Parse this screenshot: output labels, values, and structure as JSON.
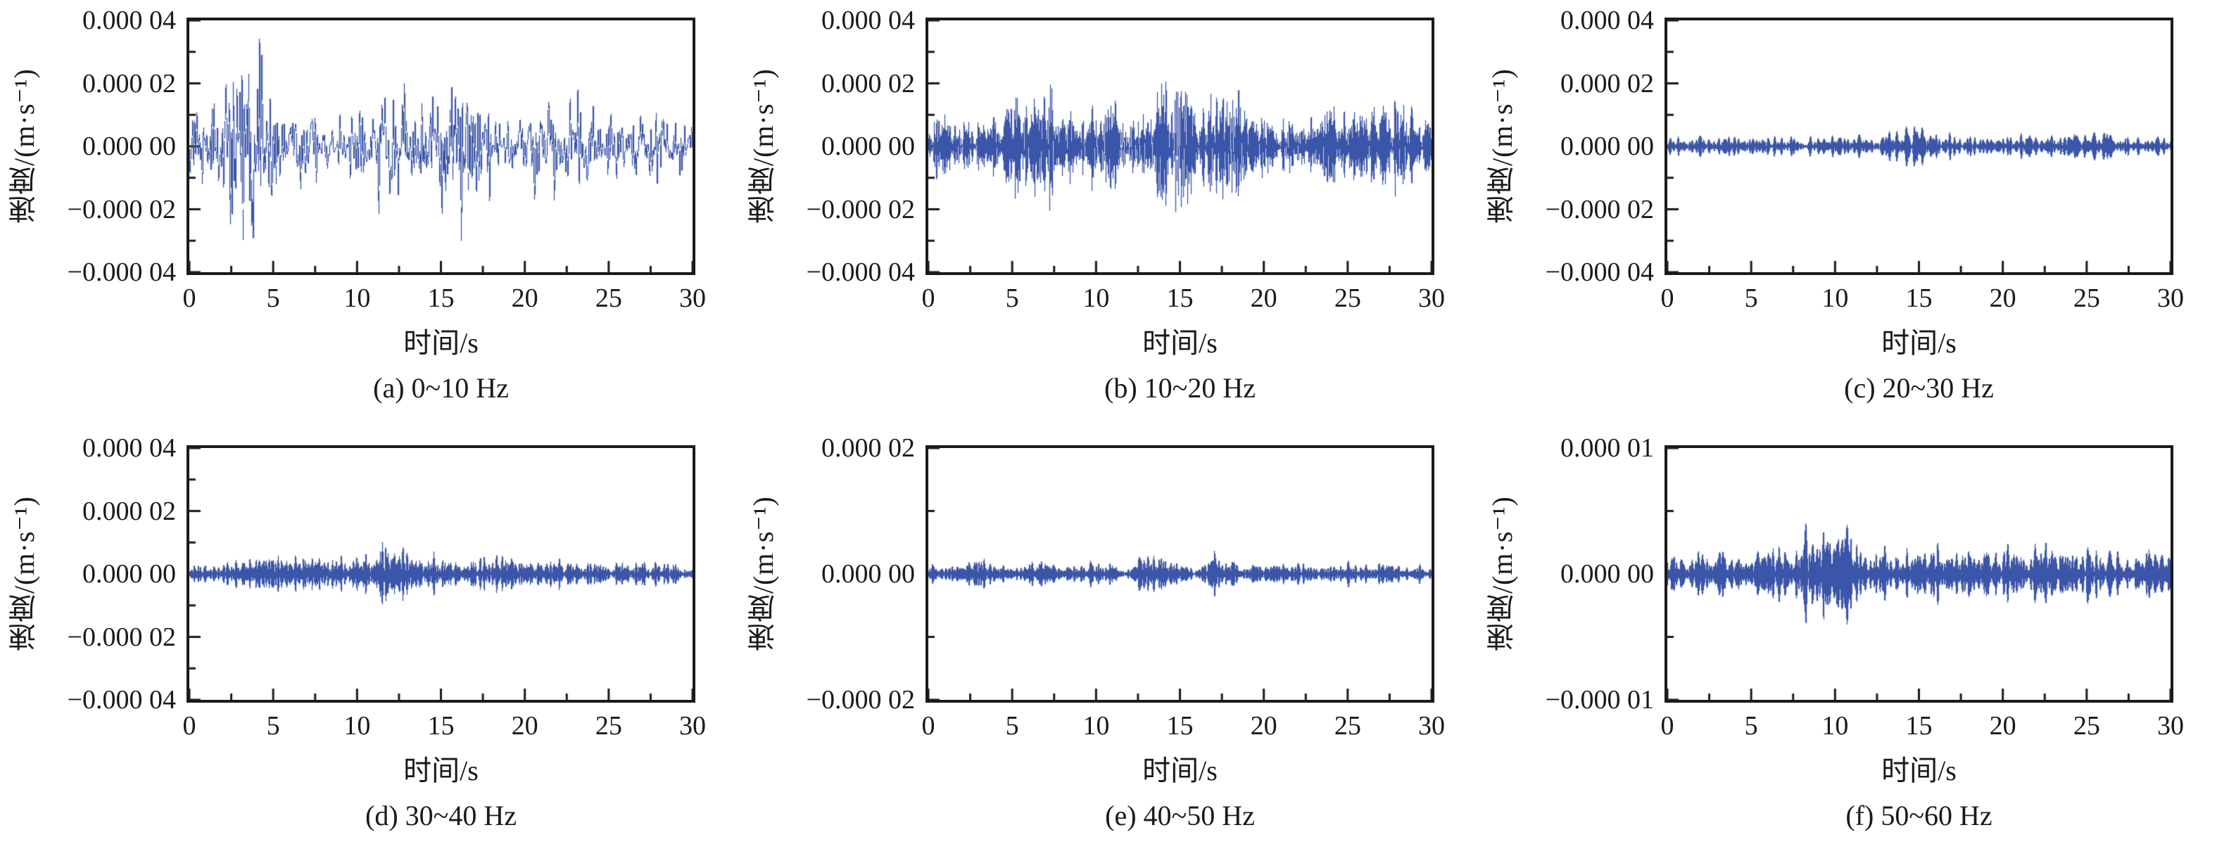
{
  "figure": {
    "line_color": "#3b55a8",
    "axis_color": "#1a1a1a",
    "background": "#ffffff",
    "grid": false,
    "legend": false
  },
  "chart_data": [
    {
      "id": "a",
      "type": "line",
      "title": "(a) 0~10 Hz",
      "band_hz": [
        0,
        10
      ],
      "xlabel": "时间/s",
      "ylabel": "速度/(m·s⁻¹)",
      "xlim": [
        0,
        30
      ],
      "xticks": [
        0,
        5,
        10,
        15,
        20,
        25,
        30
      ],
      "xminor_step": 2.5,
      "ylim": [
        -4e-05,
        4e-05
      ],
      "ytick_values": [
        4e-05,
        2e-05,
        0,
        -2e-05,
        -4e-05
      ],
      "ytick_labels": [
        "0.000 04",
        "0.000 02",
        "0.000 00",
        "−0.000 02",
        "−0.000 04"
      ],
      "yminor_step": 1e-05,
      "series_note": "band-limited seismic velocity noise; amplitude envelope sampled every 1 s",
      "envelope_t_step_s": 1,
      "envelope_amplitude_um_per_s": [
        10,
        13,
        20,
        32,
        26,
        20,
        14,
        12,
        11,
        12,
        14,
        15,
        17,
        14,
        12,
        20,
        26,
        16,
        12,
        11,
        10,
        14,
        22,
        18,
        11,
        10,
        9,
        10,
        12,
        10,
        8
      ],
      "seed": 101
    },
    {
      "id": "b",
      "type": "line",
      "title": "(b) 10~20 Hz",
      "band_hz": [
        10,
        20
      ],
      "xlabel": "时间/s",
      "ylabel": "速度/(m·s⁻¹)",
      "xlim": [
        0,
        30
      ],
      "xticks": [
        0,
        5,
        10,
        15,
        20,
        25,
        30
      ],
      "xminor_step": 2.5,
      "ylim": [
        -4e-05,
        4e-05
      ],
      "ytick_values": [
        4e-05,
        2e-05,
        0,
        -2e-05,
        -4e-05
      ],
      "ytick_labels": [
        "0.000 04",
        "0.000 02",
        "0.000 00",
        "−0.000 02",
        "−0.000 04"
      ],
      "yminor_step": 1e-05,
      "series_note": "band-limited seismic velocity noise; amplitude envelope sampled every 1 s",
      "envelope_t_step_s": 1,
      "envelope_amplitude_um_per_s": [
        14,
        8,
        7,
        8,
        9,
        13,
        17,
        18,
        13,
        11,
        11,
        12,
        12,
        16,
        22,
        24,
        20,
        19,
        16,
        12,
        10,
        9,
        10,
        11,
        10,
        9,
        10,
        12,
        11,
        9,
        7
      ],
      "seed": 102
    },
    {
      "id": "c",
      "type": "line",
      "title": "(c) 20~30 Hz",
      "band_hz": [
        20,
        30
      ],
      "xlabel": "时间/s",
      "ylabel": "速度/(m·s⁻¹)",
      "xlim": [
        0,
        30
      ],
      "xticks": [
        0,
        5,
        10,
        15,
        20,
        25,
        30
      ],
      "xminor_step": 2.5,
      "ylim": [
        -4e-05,
        4e-05
      ],
      "ytick_values": [
        4e-05,
        2e-05,
        0,
        -2e-05,
        -4e-05
      ],
      "ytick_labels": [
        "0.000 04",
        "0.000 02",
        "0.000 00",
        "−0.000 02",
        "−0.000 04"
      ],
      "yminor_step": 1e-05,
      "series_note": "band-limited seismic velocity noise; amplitude envelope sampled every 1 s",
      "envelope_t_step_s": 1,
      "envelope_amplitude_um_per_s": [
        2.5,
        2.5,
        3,
        3,
        3,
        3.5,
        3.5,
        3,
        3,
        3.5,
        3,
        3,
        3.5,
        3.5,
        4,
        7,
        4.5,
        3.5,
        3,
        3,
        3,
        3.5,
        3,
        3,
        3.5,
        3,
        3.5,
        3,
        3,
        3,
        2.5
      ],
      "seed": 103
    },
    {
      "id": "d",
      "type": "line",
      "title": "(d) 30~40 Hz",
      "band_hz": [
        30,
        40
      ],
      "xlabel": "时间/s",
      "ylabel": "速度/(m·s⁻¹)",
      "xlim": [
        0,
        30
      ],
      "xticks": [
        0,
        5,
        10,
        15,
        20,
        25,
        30
      ],
      "xminor_step": 2.5,
      "ylim": [
        -4e-05,
        4e-05
      ],
      "ytick_values": [
        4e-05,
        2e-05,
        0,
        -2e-05,
        -4e-05
      ],
      "ytick_labels": [
        "0.000 04",
        "0.000 02",
        "0.000 00",
        "−0.000 02",
        "−0.000 04"
      ],
      "yminor_step": 1e-05,
      "series_note": "band-limited seismic velocity noise; amplitude envelope sampled every 1 s",
      "envelope_t_step_s": 1,
      "envelope_amplitude_um_per_s": [
        2.5,
        3,
        3.5,
        4.5,
        5.5,
        5,
        5.5,
        6,
        5,
        4.5,
        5,
        6,
        7.5,
        7,
        5,
        4.5,
        4,
        4.5,
        5,
        6,
        5,
        3.5,
        3.5,
        4,
        3.5,
        4,
        4,
        3.5,
        3.5,
        3,
        2.5
      ],
      "seed": 104
    },
    {
      "id": "e",
      "type": "line",
      "title": "(e) 40~50 Hz",
      "band_hz": [
        40,
        50
      ],
      "xlabel": "时间/s",
      "ylabel": "速度/(m·s⁻¹)",
      "xlim": [
        0,
        30
      ],
      "xticks": [
        0,
        5,
        10,
        15,
        20,
        25,
        30
      ],
      "xminor_step": 2.5,
      "ylim": [
        -2e-05,
        2e-05
      ],
      "ytick_values": [
        2e-05,
        0,
        -2e-05
      ],
      "ytick_labels": [
        "0.000 02",
        "0.000 00",
        "−0.000 02"
      ],
      "yminor_step": 1e-05,
      "series_note": "band-limited seismic velocity noise; amplitude envelope sampled every 1 s",
      "envelope_t_step_s": 1,
      "envelope_amplitude_um_per_s": [
        1.2,
        1.4,
        1.6,
        2,
        1.6,
        1.4,
        1.5,
        1.6,
        1.4,
        1.3,
        1.4,
        1.5,
        1.8,
        3.8,
        2,
        1.6,
        1.8,
        2.6,
        1.8,
        1.5,
        1.4,
        1.4,
        1.5,
        1.4,
        1.3,
        1.4,
        1.5,
        1.6,
        1.4,
        1.6,
        1.2
      ],
      "seed": 105
    },
    {
      "id": "f",
      "type": "line",
      "title": "(f) 50~60 Hz",
      "band_hz": [
        50,
        60
      ],
      "xlabel": "时间/s",
      "ylabel": "速度/(m·s⁻¹)",
      "xlim": [
        0,
        30
      ],
      "xticks": [
        0,
        5,
        10,
        15,
        20,
        25,
        30
      ],
      "xminor_step": 2.5,
      "ylim": [
        -1e-05,
        1e-05
      ],
      "ytick_values": [
        1e-05,
        0,
        -1e-05
      ],
      "ytick_labels": [
        "0.000 01",
        "0.000 00",
        "−0.000 01"
      ],
      "yminor_step": 5e-06,
      "series_note": "band-limited seismic velocity noise; amplitude envelope sampled every 1 s",
      "envelope_t_step_s": 1,
      "envelope_amplitude_um_per_s": [
        1.5,
        1.6,
        1.7,
        1.8,
        1.7,
        1.8,
        2,
        2.2,
        2.6,
        3.2,
        3.6,
        3.2,
        1.9,
        1.7,
        1.7,
        1.8,
        1.7,
        1.8,
        1.7,
        1.8,
        2.2,
        2,
        1.8,
        1.9,
        2.2,
        2,
        1.8,
        1.7,
        1.8,
        1.6,
        1.5
      ],
      "seed": 106
    }
  ]
}
